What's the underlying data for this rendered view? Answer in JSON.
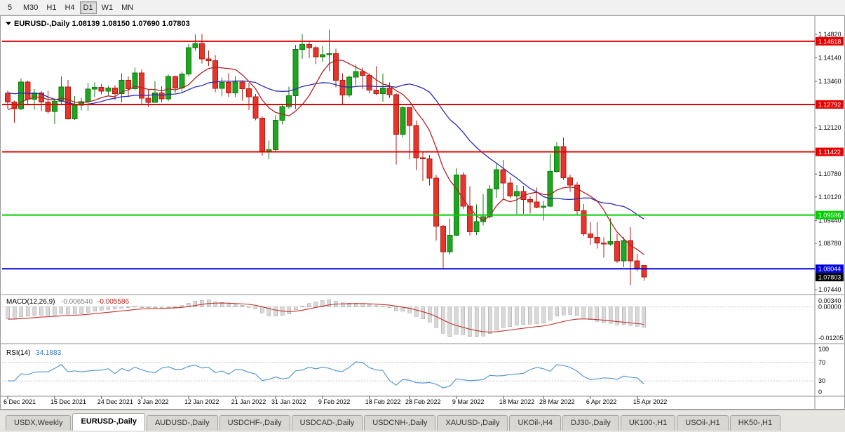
{
  "toolbar": {
    "timeframes": [
      {
        "label": "5",
        "active": false
      },
      {
        "label": "M30",
        "active": false
      },
      {
        "label": "H1",
        "active": false
      },
      {
        "label": "H4",
        "active": false
      },
      {
        "label": "D1",
        "active": true
      },
      {
        "label": "W1",
        "active": false
      },
      {
        "label": "MN",
        "active": false
      }
    ]
  },
  "chart": {
    "symbol": "EURUSD-,Daily",
    "header_line": "EURUSD-,Daily 1.08139 1.08150 1.07690 1.07803",
    "ohlc": {
      "open": "1.08139",
      "high": "1.08150",
      "low": "1.07690",
      "close": "1.07803"
    }
  },
  "indicators": {
    "macd": {
      "label": "MACD(12,26,9)",
      "value_main": "-0.006540",
      "value_signal": "-0.005586",
      "axis": [
        "0.00340",
        "0.00000",
        "-0.01205"
      ]
    },
    "rsi": {
      "label": "RSI(14)",
      "value": "34.1883",
      "axis": [
        "100",
        "70",
        "30",
        "0"
      ]
    }
  },
  "chart_data": {
    "type": "candlestick",
    "title": "EURUSD-,Daily",
    "grid": false,
    "ylim": [
      1.0738,
      1.15
    ],
    "candles": [
      [
        1.1312,
        1.132,
        1.1267,
        1.1286
      ],
      [
        1.1286,
        1.129,
        1.1226,
        1.1267
      ],
      [
        1.1267,
        1.1354,
        1.1263,
        1.1344
      ],
      [
        1.1344,
        1.1348,
        1.128,
        1.1294
      ],
      [
        1.1294,
        1.1324,
        1.1264,
        1.1313
      ],
      [
        1.1313,
        1.1319,
        1.126,
        1.1286
      ],
      [
        1.1286,
        1.1319,
        1.1253,
        1.1259
      ],
      [
        1.1259,
        1.1296,
        1.1222,
        1.1288
      ],
      [
        1.1288,
        1.136,
        1.128,
        1.133
      ],
      [
        1.133,
        1.135,
        1.1236,
        1.1238
      ],
      [
        1.1238,
        1.1303,
        1.1235,
        1.1277
      ],
      [
        1.1277,
        1.1298,
        1.1262,
        1.1287
      ],
      [
        1.1287,
        1.1342,
        1.1261,
        1.1324
      ],
      [
        1.1324,
        1.1343,
        1.13,
        1.1329
      ],
      [
        1.1329,
        1.1338,
        1.1308,
        1.1318
      ],
      [
        1.1318,
        1.1333,
        1.1302,
        1.1327
      ],
      [
        1.1327,
        1.1335,
        1.1292,
        1.1311
      ],
      [
        1.1311,
        1.1369,
        1.1285,
        1.1349
      ],
      [
        1.1349,
        1.136,
        1.13,
        1.1325
      ],
      [
        1.1325,
        1.1386,
        1.1321,
        1.137
      ],
      [
        1.137,
        1.138,
        1.1279,
        1.1297
      ],
      [
        1.1297,
        1.1324,
        1.1272,
        1.1285
      ],
      [
        1.1285,
        1.1347,
        1.1284,
        1.1313
      ],
      [
        1.1313,
        1.1332,
        1.1285,
        1.1295
      ],
      [
        1.1295,
        1.1365,
        1.1288,
        1.136
      ],
      [
        1.136,
        1.1362,
        1.1313,
        1.1327
      ],
      [
        1.1327,
        1.1374,
        1.1314,
        1.1367
      ],
      [
        1.1367,
        1.1453,
        1.1361,
        1.1443
      ],
      [
        1.1443,
        1.1482,
        1.1434,
        1.1455
      ],
      [
        1.1455,
        1.1483,
        1.1398,
        1.1411
      ],
      [
        1.1411,
        1.1435,
        1.1391,
        1.1406
      ],
      [
        1.1406,
        1.1422,
        1.1315,
        1.1326
      ],
      [
        1.1326,
        1.1357,
        1.1302,
        1.1343
      ],
      [
        1.1343,
        1.1369,
        1.1301,
        1.1313
      ],
      [
        1.1313,
        1.136,
        1.13,
        1.1344
      ],
      [
        1.1344,
        1.1349,
        1.129,
        1.1325
      ],
      [
        1.1325,
        1.1342,
        1.1263,
        1.1301
      ],
      [
        1.1301,
        1.131,
        1.1234,
        1.124
      ],
      [
        1.124,
        1.1245,
        1.1131,
        1.1144
      ],
      [
        1.1144,
        1.1175,
        1.1121,
        1.1148
      ],
      [
        1.1148,
        1.1248,
        1.1141,
        1.1234
      ],
      [
        1.1234,
        1.1279,
        1.1221,
        1.1273
      ],
      [
        1.1273,
        1.1331,
        1.1267,
        1.1304
      ],
      [
        1.1304,
        1.1451,
        1.1266,
        1.1438
      ],
      [
        1.1438,
        1.1483,
        1.1411,
        1.1452
      ],
      [
        1.1452,
        1.1462,
        1.1414,
        1.1443
      ],
      [
        1.1443,
        1.1449,
        1.1396,
        1.1417
      ],
      [
        1.1417,
        1.1448,
        1.1403,
        1.1423
      ],
      [
        1.1423,
        1.1495,
        1.1375,
        1.1426
      ],
      [
        1.1426,
        1.144,
        1.1329,
        1.1349
      ],
      [
        1.1349,
        1.1369,
        1.1278,
        1.1306
      ],
      [
        1.1306,
        1.1362,
        1.13,
        1.1358
      ],
      [
        1.1358,
        1.1395,
        1.1335,
        1.1374
      ],
      [
        1.1374,
        1.1385,
        1.1324,
        1.1363
      ],
      [
        1.1363,
        1.1369,
        1.1312,
        1.1321
      ],
      [
        1.1321,
        1.139,
        1.1305,
        1.1311
      ],
      [
        1.1311,
        1.1368,
        1.1287,
        1.1327
      ],
      [
        1.1327,
        1.1343,
        1.1297,
        1.1307
      ],
      [
        1.1307,
        1.1313,
        1.1106,
        1.1193
      ],
      [
        1.1193,
        1.1274,
        1.1184,
        1.127
      ],
      [
        1.127,
        1.1272,
        1.1121,
        1.1218
      ],
      [
        1.1218,
        1.1232,
        1.109,
        1.1125
      ],
      [
        1.1125,
        1.1144,
        1.1058,
        1.1122
      ],
      [
        1.1122,
        1.1133,
        1.1045,
        1.1066
      ],
      [
        1.1066,
        1.1075,
        1.0886,
        1.0927
      ],
      [
        1.0927,
        1.0931,
        1.0806,
        1.0854
      ],
      [
        1.0854,
        1.095,
        1.0845,
        1.0901
      ],
      [
        1.0901,
        1.1096,
        1.0899,
        1.1075
      ],
      [
        1.1075,
        1.1084,
        1.0977,
        1.0985
      ],
      [
        1.0985,
        1.1043,
        1.0901,
        1.0911
      ],
      [
        1.0911,
        1.099,
        1.0902,
        1.0941
      ],
      [
        1.0941,
        1.102,
        1.093,
        1.0955
      ],
      [
        1.0955,
        1.1046,
        1.095,
        1.1035
      ],
      [
        1.1035,
        1.1109,
        1.101,
        1.1091
      ],
      [
        1.1091,
        1.1119,
        1.1003,
        1.1052
      ],
      [
        1.1052,
        1.1069,
        1.1009,
        1.1015
      ],
      [
        1.1015,
        1.1046,
        1.0962,
        1.1028
      ],
      [
        1.1028,
        1.1044,
        1.0963,
        1.1004
      ],
      [
        1.1004,
        1.1014,
        1.0964,
        1.0997
      ],
      [
        1.0997,
        1.1039,
        1.0979,
        1.0982
      ],
      [
        1.0982,
        1.1,
        1.0944,
        1.0985
      ],
      [
        1.0985,
        1.1137,
        1.0982,
        1.1086
      ],
      [
        1.1086,
        1.1171,
        1.1083,
        1.1158
      ],
      [
        1.1158,
        1.1184,
        1.1061,
        1.1067
      ],
      [
        1.1067,
        1.1076,
        1.1027,
        1.1046
      ],
      [
        1.1046,
        1.1055,
        1.096,
        1.0972
      ],
      [
        1.0972,
        1.0991,
        1.0898,
        1.0905
      ],
      [
        1.0905,
        1.0939,
        1.0874,
        1.0895
      ],
      [
        1.0895,
        1.094,
        1.0863,
        1.0879
      ],
      [
        1.0879,
        1.0895,
        1.0836,
        1.0876
      ],
      [
        1.0876,
        1.095,
        1.0871,
        1.0883
      ],
      [
        1.0883,
        1.0905,
        1.0821,
        1.0827
      ],
      [
        1.0827,
        1.0896,
        1.0809,
        1.0886
      ],
      [
        1.0886,
        1.0924,
        1.0757,
        1.0827
      ],
      [
        1.0827,
        1.0847,
        1.0797,
        1.0807
      ],
      [
        1.08139,
        1.0815,
        1.0769,
        1.07803
      ]
    ],
    "warmup_closes": [
      1.145,
      1.143,
      1.141,
      1.138,
      1.135,
      1.132,
      1.129,
      1.126,
      1.123,
      1.12,
      1.124,
      1.126,
      1.129,
      1.131,
      1.13
    ],
    "x_labels": [
      {
        "label": "6 Dec 2021",
        "index": 0
      },
      {
        "label": "15 Dec 2021",
        "index": 7
      },
      {
        "label": "24 Dec 2021",
        "index": 14
      },
      {
        "label": "3 Jan 2022",
        "index": 20
      },
      {
        "label": "12 Jan 2022",
        "index": 27
      },
      {
        "label": "21 Jan 2022",
        "index": 34
      },
      {
        "label": "31 Jan 2022",
        "index": 40
      },
      {
        "label": "9 Feb 2022",
        "index": 47
      },
      {
        "label": "18 Feb 2022",
        "index": 54
      },
      {
        "label": "28 Feb 2022",
        "index": 60
      },
      {
        "label": "9 Mar 2022",
        "index": 67
      },
      {
        "label": "18 Mar 2022",
        "index": 74
      },
      {
        "label": "28 Mar 2022",
        "index": 80
      },
      {
        "label": "6 Apr 2022",
        "index": 87
      },
      {
        "label": "15 Apr 2022",
        "index": 94
      }
    ],
    "price_axis": [
      {
        "label": "1.14820",
        "price": 1.1482
      },
      {
        "label": "1.14140",
        "price": 1.1414
      },
      {
        "label": "1.13460",
        "price": 1.1346
      },
      {
        "label": "1.12120",
        "price": 1.1212
      },
      {
        "label": "1.10780",
        "price": 1.1078
      },
      {
        "label": "1.10120",
        "price": 1.1012
      },
      {
        "label": "1.09440",
        "price": 1.0944
      },
      {
        "label": "1.08780",
        "price": 1.0878
      },
      {
        "label": "1.07440",
        "price": 1.0744
      }
    ],
    "levels": [
      {
        "label": "1.14618",
        "price": 1.14618,
        "color": "#e60000"
      },
      {
        "label": "1.12792",
        "price": 1.12792,
        "color": "#e60000"
      },
      {
        "label": "1.11422",
        "price": 1.11422,
        "color": "#e60000"
      },
      {
        "label": "1.09596",
        "price": 1.09596,
        "color": "#00ce00"
      },
      {
        "label": "1.08044",
        "price": 1.08044,
        "color": "#0000dd"
      }
    ],
    "current_price": {
      "label": "1.07803",
      "price": 1.07803,
      "color": "#000000"
    },
    "moving_averages": [
      {
        "name": "ma-fast",
        "period": 8,
        "color": "#b22222"
      },
      {
        "name": "ma-slow",
        "period": 21,
        "color": "#2b2bb2"
      }
    ],
    "macd": {
      "ylim": [
        -0.01205,
        0.0034
      ]
    },
    "rsi": {
      "levels": [
        70,
        30
      ]
    },
    "colors": {
      "up": "#1fa51f",
      "up_border": "#0c7a0c",
      "down": "#e8352b",
      "down_border": "#b01c14",
      "macd_hist": "#d9d9d9",
      "macd_hist_border": "#9e9e9e",
      "macd_signal": "#c03028",
      "rsi": "#4a8fd2"
    }
  },
  "tabs": [
    {
      "label": "USDX,Weekly",
      "active": false
    },
    {
      "label": "EURUSD-,Daily",
      "active": true
    },
    {
      "label": "AUDUSD-,Daily",
      "active": false
    },
    {
      "label": "USDCHF-,Daily",
      "active": false
    },
    {
      "label": "USDCAD-,Daily",
      "active": false
    },
    {
      "label": "USDCNH-,Daily",
      "active": false
    },
    {
      "label": "XAUUSD-,Daily",
      "active": false
    },
    {
      "label": "UKOil-,H4",
      "active": false
    },
    {
      "label": "DJ30-,Daily",
      "active": false
    },
    {
      "label": "UK100-,H1",
      "active": false
    },
    {
      "label": "USOil-,H1",
      "active": false
    },
    {
      "label": "HK50-,H1",
      "active": false
    }
  ]
}
